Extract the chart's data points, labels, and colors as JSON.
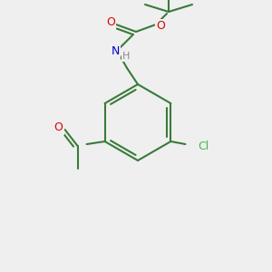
{
  "background_color": "#efefef",
  "bond_color": "#3a7a3a",
  "bond_width": 1.5,
  "atom_colors": {
    "O": "#dd0000",
    "N": "#0000cc",
    "Cl": "#44bb44",
    "C": "#000000",
    "H": "#888888"
  },
  "figsize": [
    3.0,
    3.0
  ],
  "dpi": 100
}
